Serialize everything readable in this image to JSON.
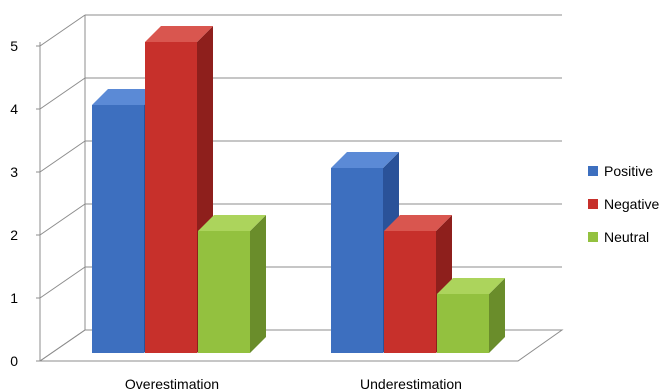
{
  "chart_data": {
    "type": "bar",
    "categories": [
      "Overestimation",
      "Underestimation"
    ],
    "series": [
      {
        "name": "Positive",
        "values": [
          4,
          3
        ],
        "color": "#3d6fbf",
        "side": "#2a5299",
        "top": "#5b8ad6"
      },
      {
        "name": "Negative",
        "values": [
          5,
          2
        ],
        "color": "#c7302b",
        "side": "#8e1f1c",
        "top": "#d9564f"
      },
      {
        "name": "Neutral",
        "values": [
          2,
          1
        ],
        "color": "#93c13f",
        "side": "#6a8d2b",
        "top": "#acd45c"
      }
    ],
    "yticks": [
      "0",
      "1",
      "2",
      "3",
      "4",
      "5"
    ],
    "ylim": [
      0,
      5
    ],
    "title": "",
    "xlabel": "",
    "ylabel": "",
    "legend": "right",
    "grid": true
  }
}
